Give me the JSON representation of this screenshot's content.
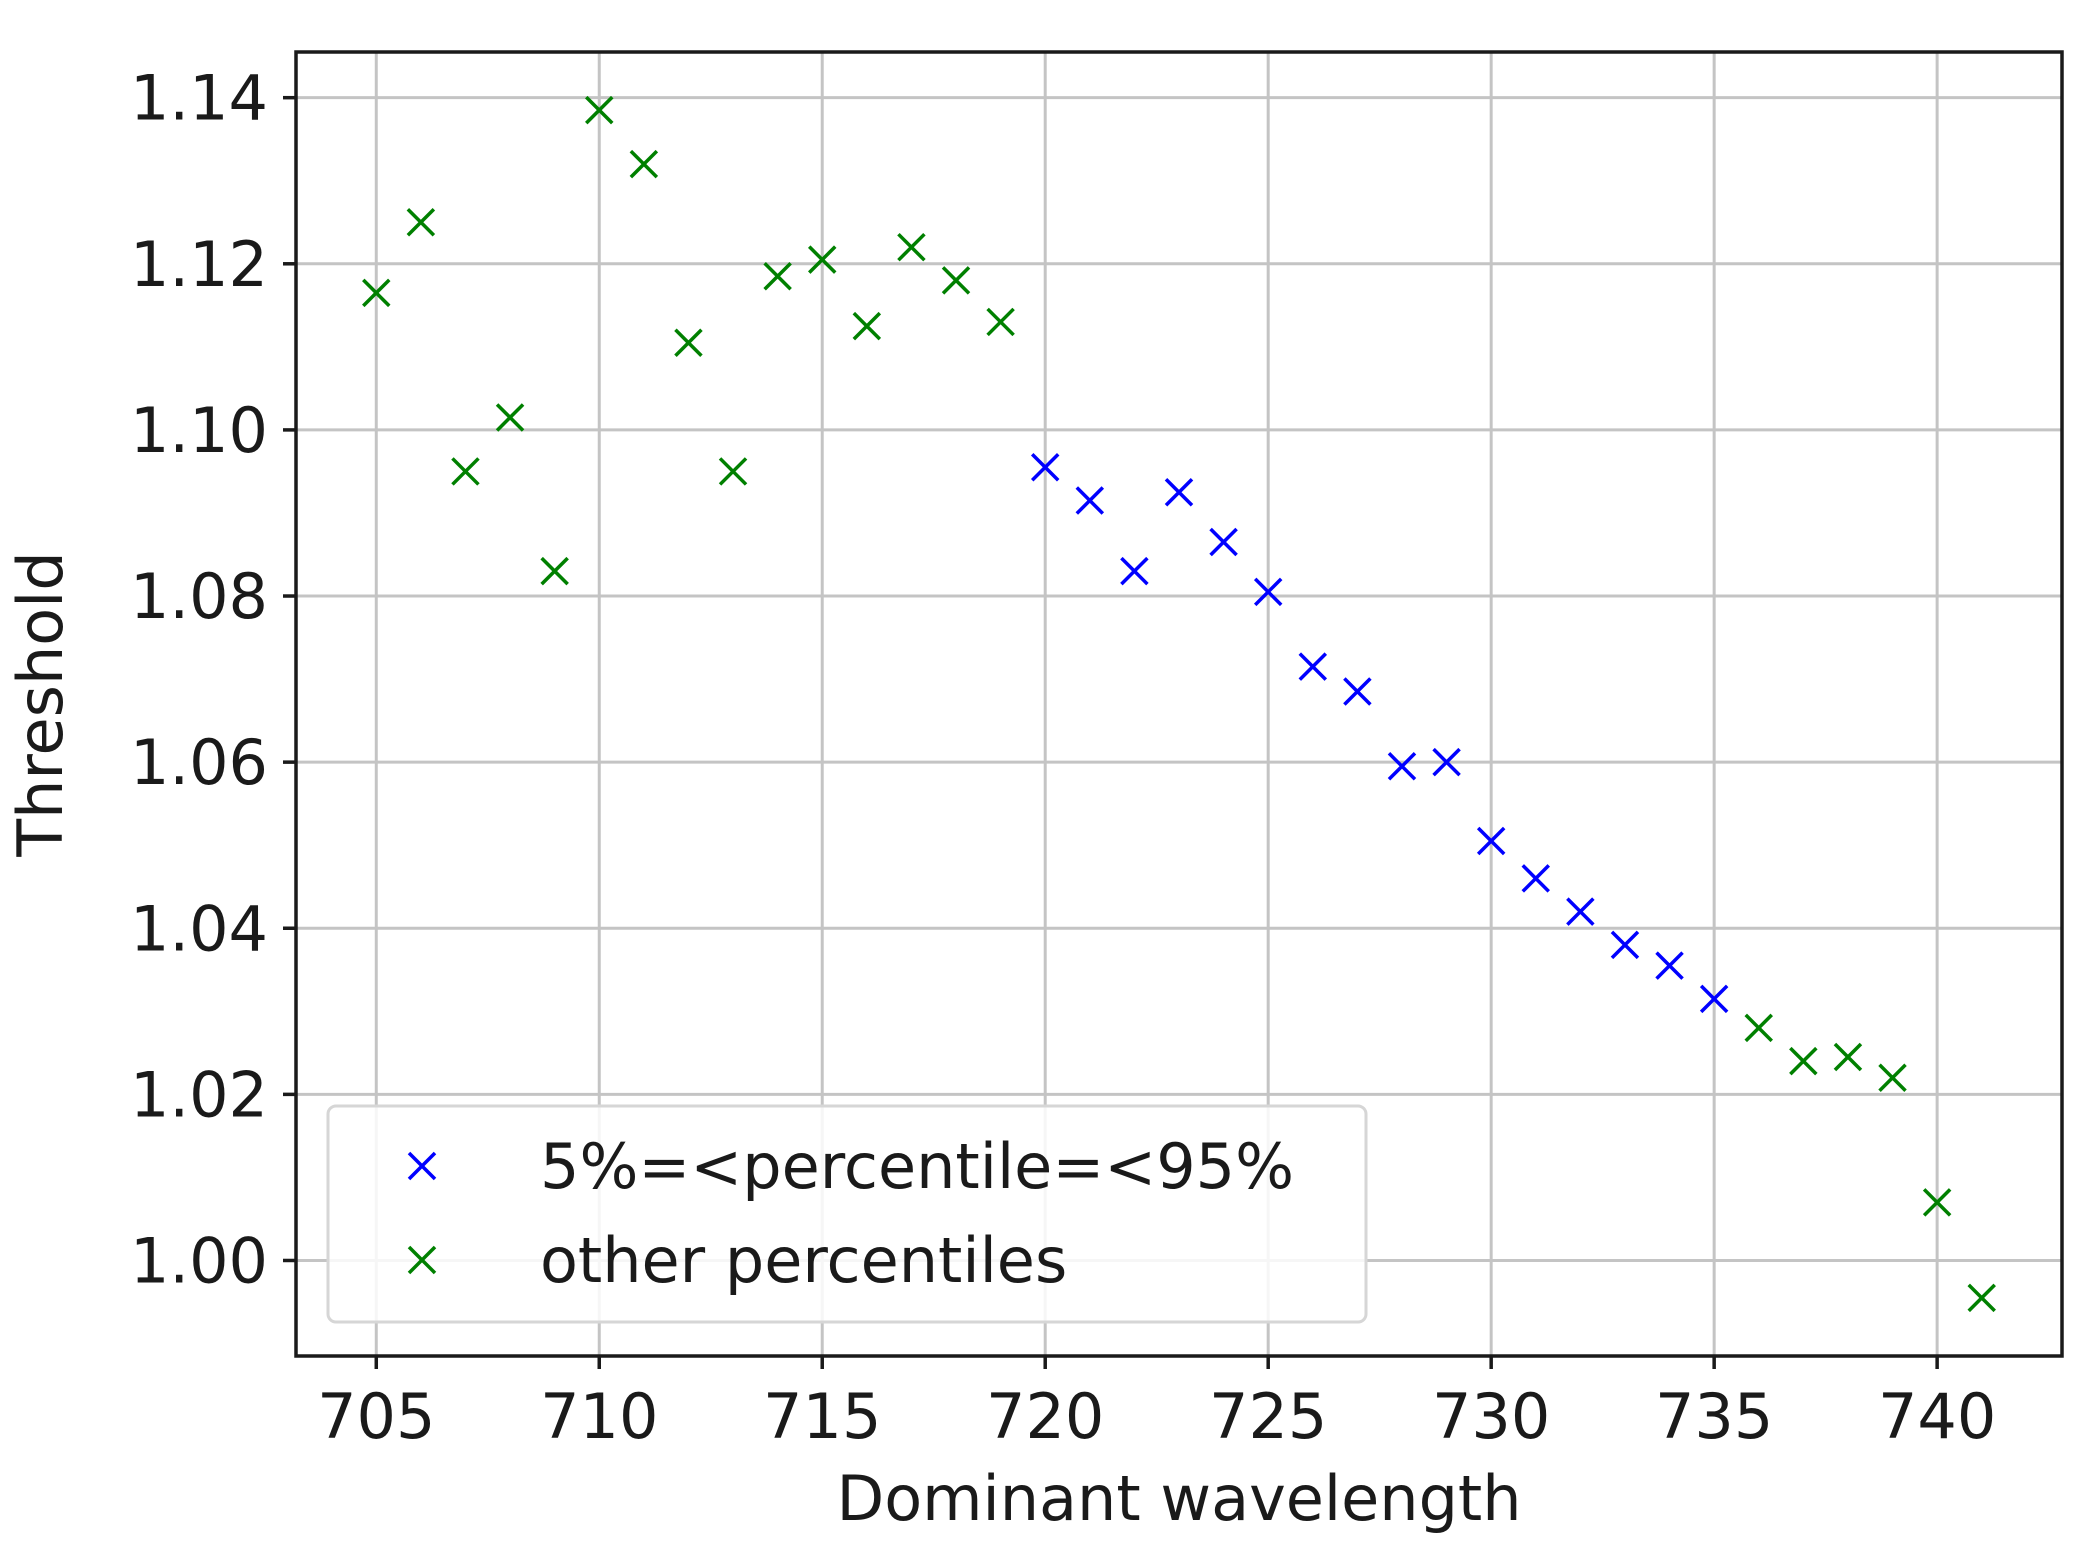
{
  "chart_data": {
    "type": "scatter",
    "xlabel": "Dominant wavelength",
    "ylabel": "Threshold",
    "xlim": [
      703.2,
      742.8
    ],
    "ylim": [
      0.9885,
      1.1455
    ],
    "xticks": [
      705,
      710,
      715,
      720,
      725,
      730,
      735,
      740
    ],
    "xtick_labels": [
      "705",
      "710",
      "715",
      "720",
      "725",
      "730",
      "735",
      "740"
    ],
    "yticks": [
      1.0,
      1.02,
      1.04,
      1.06,
      1.08,
      1.1,
      1.12,
      1.14
    ],
    "ytick_labels": [
      "1.00",
      "1.02",
      "1.04",
      "1.06",
      "1.08",
      "1.10",
      "1.12",
      "1.14"
    ],
    "grid": true,
    "legend_position": "lower-left",
    "marker": "x",
    "series": [
      {
        "name": "5%=<percentile=<95%",
        "color": "#0000ff",
        "points": [
          [
            720,
            1.0955
          ],
          [
            721,
            1.0915
          ],
          [
            722,
            1.083
          ],
          [
            723,
            1.0925
          ],
          [
            724,
            1.0865
          ],
          [
            725,
            1.0805
          ],
          [
            726,
            1.0715
          ],
          [
            727,
            1.0685
          ],
          [
            728,
            1.0595
          ],
          [
            729,
            1.06
          ],
          [
            730,
            1.0505
          ],
          [
            731,
            1.046
          ],
          [
            732,
            1.042
          ],
          [
            733,
            1.038
          ],
          [
            734,
            1.0355
          ],
          [
            735,
            1.0315
          ]
        ]
      },
      {
        "name": "other percentiles",
        "color": "#008000",
        "points": [
          [
            705,
            1.1165
          ],
          [
            706,
            1.125
          ],
          [
            707,
            1.095
          ],
          [
            708,
            1.1015
          ],
          [
            709,
            1.083
          ],
          [
            710,
            1.1385
          ],
          [
            711,
            1.132
          ],
          [
            712,
            1.1105
          ],
          [
            713,
            1.095
          ],
          [
            714,
            1.1185
          ],
          [
            715,
            1.1205
          ],
          [
            716,
            1.1125
          ],
          [
            717,
            1.122
          ],
          [
            718,
            1.118
          ],
          [
            719,
            1.113
          ],
          [
            736,
            1.028
          ],
          [
            737,
            1.024
          ],
          [
            738,
            1.0245
          ],
          [
            739,
            1.022
          ],
          [
            740,
            1.007
          ],
          [
            741,
            0.9955
          ]
        ]
      }
    ]
  }
}
